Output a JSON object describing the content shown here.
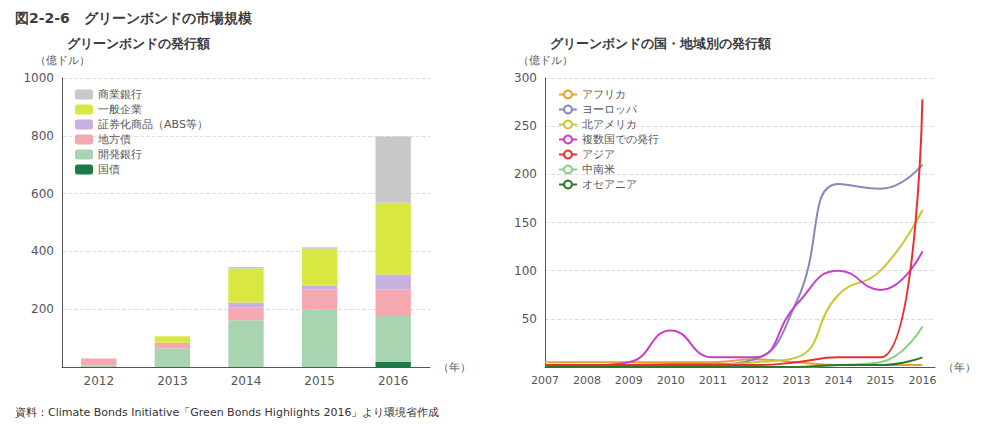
{
  "title": "図2-2-6　グリーンボンドの市場規模",
  "annotations": [
    "資料：Climate Bonds Initiative「Green Bonds Highlights 2016」より環境省作成"
  ],
  "chart_data": [
    {
      "type": "bar",
      "title": "グリーンボンドの発行額",
      "xlabel": "（年）",
      "ylabel": "（億ドル）",
      "categories": [
        "2012",
        "2013",
        "2014",
        "2015",
        "2016"
      ],
      "stacked": true,
      "series": [
        {
          "name": "国債",
          "color": "#1e7a45",
          "values": [
            0,
            0,
            0,
            0,
            18
          ]
        },
        {
          "name": "開発銀行",
          "color": "#a8d5b0",
          "values": [
            5,
            65,
            162,
            200,
            162
          ]
        },
        {
          "name": "地方債",
          "color": "#f5a8b0",
          "values": [
            24,
            15,
            43,
            67,
            88
          ]
        },
        {
          "name": "証券化商品（ABS等）",
          "color": "#c8b0e0",
          "values": [
            0,
            4,
            18,
            15,
            52
          ]
        },
        {
          "name": "一般企業",
          "color": "#d8e840",
          "values": [
            0,
            22,
            118,
            127,
            248
          ]
        },
        {
          "name": "商業銀行",
          "color": "#c8c8c8",
          "values": [
            0,
            0,
            5,
            5,
            230
          ]
        }
      ],
      "ylim": [
        0,
        1000
      ],
      "yticks": [
        200,
        400,
        600,
        800,
        1000
      ],
      "grid": true,
      "legend": "upper left"
    },
    {
      "type": "line",
      "title": "グリーンボンドの国・地域別の発行額",
      "xlabel": "（年）",
      "ylabel": "（億ドル）",
      "x": [
        2007,
        2008,
        2009,
        2010,
        2011,
        2012,
        2013,
        2014,
        2015,
        2016
      ],
      "series": [
        {
          "name": "アフリカ",
          "color": "#e8a030",
          "values": [
            5,
            5,
            5,
            5,
            5,
            8,
            5,
            2,
            2,
            2
          ]
        },
        {
          "name": "ヨーロッパ",
          "color": "#8888bb",
          "values": [
            2,
            2,
            2,
            3,
            3,
            8,
            68,
            190,
            185,
            210
          ]
        },
        {
          "name": "北アメリカ",
          "color": "#c8c830",
          "values": [
            2,
            2,
            2,
            2,
            2,
            5,
            10,
            75,
            100,
            163
          ]
        },
        {
          "name": "複数国での発行",
          "color": "#c840c8",
          "values": [
            2,
            2,
            5,
            38,
            10,
            10,
            65,
            100,
            80,
            120
          ]
        },
        {
          "name": "アジア",
          "color": "#e83030",
          "values": [
            2,
            2,
            2,
            2,
            2,
            2,
            5,
            10,
            10,
            278
          ]
        },
        {
          "name": "中南米",
          "color": "#88cc88",
          "values": [
            0,
            0,
            0,
            0,
            0,
            0,
            0,
            2,
            5,
            42
          ]
        },
        {
          "name": "オセアニア",
          "color": "#2a7a2a",
          "values": [
            0,
            0,
            0,
            0,
            0,
            0,
            0,
            2,
            2,
            10
          ]
        }
      ],
      "xlim": [
        2007,
        2016.3
      ],
      "xticks": [
        2007,
        2008,
        2009,
        2010,
        2011,
        2012,
        2013,
        2014,
        2015,
        2016
      ],
      "ylim": [
        0,
        300
      ],
      "yticks": [
        50,
        100,
        150,
        200,
        250,
        300
      ],
      "grid": true,
      "legend": "upper left"
    }
  ]
}
